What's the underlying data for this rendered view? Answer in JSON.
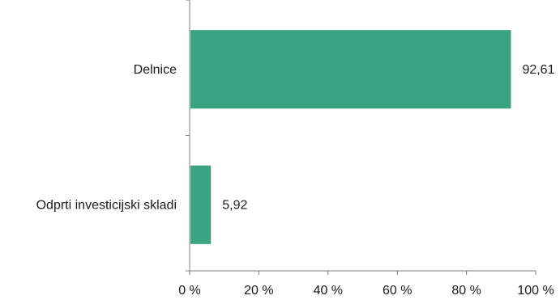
{
  "chart_data": {
    "type": "bar",
    "orientation": "horizontal",
    "categories": [
      "Delnice",
      "Odprti investicijski skladi"
    ],
    "values": [
      92.61,
      5.92
    ],
    "value_labels": [
      "92,61",
      "5,92"
    ],
    "xlim": [
      0,
      100
    ],
    "xticks": [
      0,
      20,
      40,
      60,
      80,
      100
    ],
    "xtick_labels": [
      "0 %",
      "20 %",
      "40 %",
      "60 %",
      "80 %",
      "100 %"
    ],
    "title": "",
    "xlabel": "",
    "ylabel": "",
    "grid": false,
    "legend": "none",
    "bar_color": "#3ba381"
  }
}
